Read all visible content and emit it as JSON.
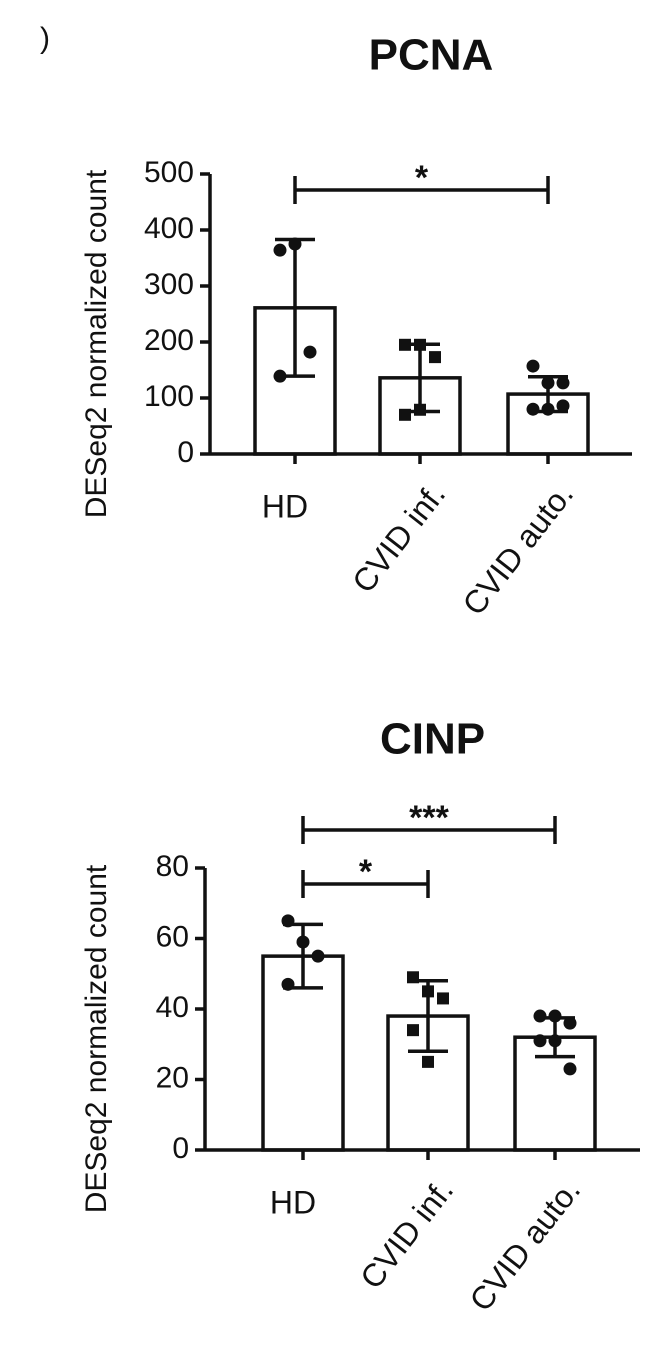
{
  "panel_label": ")",
  "chart_data": [
    {
      "type": "bar",
      "title": "PCNA",
      "ylabel": "DESeq2 normalized count",
      "categories": [
        "HD",
        "CVID inf.",
        "CVID auto."
      ],
      "values": [
        261,
        136,
        107
      ],
      "errors": [
        122,
        60,
        31
      ],
      "points": [
        [
          364,
          375,
          182,
          139
        ],
        [
          195,
          195,
          173,
          70,
          79
        ],
        [
          157,
          127,
          127,
          80,
          80,
          86
        ]
      ],
      "markers": [
        "circle",
        "square",
        "circle"
      ],
      "ylim": [
        0,
        500
      ],
      "yticks": [
        0,
        100,
        200,
        300,
        400,
        500
      ],
      "comparisons": [
        {
          "from": 0,
          "to": 2,
          "label": "*"
        }
      ]
    },
    {
      "type": "bar",
      "title": "CINP",
      "ylabel": "DESeq2 normalized count",
      "categories": [
        "HD",
        "CVID inf.",
        "CVID auto."
      ],
      "values": [
        55,
        38,
        32
      ],
      "errors": [
        9,
        10,
        5.5
      ],
      "points": [
        [
          65,
          59,
          55,
          47
        ],
        [
          49,
          45,
          43,
          34,
          25
        ],
        [
          38,
          38,
          36,
          31,
          31,
          23
        ]
      ],
      "markers": [
        "circle",
        "square",
        "circle"
      ],
      "ylim": [
        0,
        80
      ],
      "yticks": [
        0,
        20,
        40,
        60,
        80
      ],
      "comparisons": [
        {
          "from": 0,
          "to": 1,
          "label": "*"
        },
        {
          "from": 0,
          "to": 2,
          "label": "***"
        }
      ]
    }
  ]
}
